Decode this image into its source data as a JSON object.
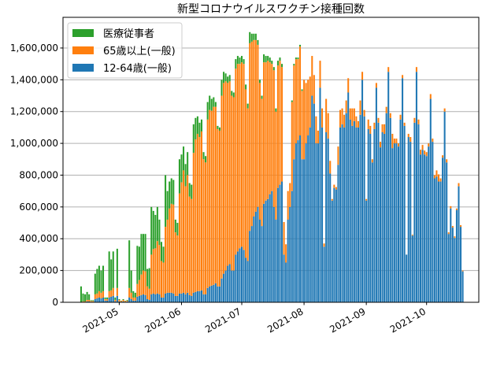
{
  "chart_data": {
    "type": "bar",
    "stacked": true,
    "title": "新型コロナウイルスワクチン接種回数",
    "xlabel": "",
    "ylabel": "",
    "frequency": "daily",
    "date_range": [
      "2021-04-12",
      "2021-10-19"
    ],
    "xlim": [
      "2021-04-03",
      "2021-10-27"
    ],
    "ylim": [
      0,
      1793000
    ],
    "x_ticks": [
      "2021-05",
      "2021-06",
      "2021-07",
      "2021-08",
      "2021-09",
      "2021-10"
    ],
    "x_tick_dates": [
      "2021-05-01",
      "2021-06-01",
      "2021-07-01",
      "2021-08-01",
      "2021-09-01",
      "2021-10-01"
    ],
    "y_ticks": [
      0,
      200000,
      400000,
      600000,
      800000,
      1000000,
      1200000,
      1400000,
      1600000
    ],
    "y_tick_labels": [
      "0",
      "200,000",
      "400,000",
      "600,000",
      "800,000",
      "1,000,000",
      "1,200,000",
      "1,400,000",
      "1,600,000"
    ],
    "grid": "horizontal",
    "legend_position": "top-left",
    "legend_order": [
      "medical",
      "elderly",
      "general"
    ],
    "series": [
      {
        "key": "general",
        "name": "12-64歳(一般)",
        "color": "#1f77b4",
        "values": [
          0,
          0,
          0,
          5000,
          5000,
          3000,
          3000,
          20000,
          25000,
          30000,
          25000,
          30000,
          10000,
          10000,
          30000,
          35000,
          40000,
          5000,
          40000,
          5000,
          3000,
          5000,
          3000,
          5000,
          30000,
          20000,
          10000,
          10000,
          35000,
          40000,
          45000,
          50000,
          45000,
          20000,
          15000,
          50000,
          55000,
          50000,
          55000,
          50000,
          30000,
          30000,
          55000,
          60000,
          60000,
          60000,
          55000,
          40000,
          40000,
          55000,
          55000,
          60000,
          50000,
          60000,
          45000,
          40000,
          60000,
          65000,
          70000,
          70000,
          75000,
          50000,
          50000,
          90000,
          100000,
          105000,
          110000,
          120000,
          100000,
          100000,
          150000,
          180000,
          200000,
          230000,
          240000,
          200000,
          200000,
          300000,
          320000,
          340000,
          350000,
          330000,
          280000,
          260000,
          450000,
          480000,
          540000,
          570000,
          600000,
          520000,
          480000,
          620000,
          640000,
          650000,
          680000,
          700000,
          600000,
          520000,
          720000,
          740000,
          760000,
          300000,
          250000,
          520000,
          600000,
          700000,
          900000,
          1000000,
          1020000,
          1050000,
          900000,
          900000,
          1000000,
          1050000,
          1100000,
          1300000,
          1250000,
          1000000,
          1000000,
          1350000,
          1100000,
          350000,
          1070000,
          1030000,
          810000,
          640000,
          720000,
          710000,
          865000,
          1100000,
          1120000,
          1100000,
          1190000,
          1320000,
          1150000,
          1110000,
          1140000,
          1100000,
          1100000,
          1180000,
          1400000,
          1170000,
          640000,
          1090000,
          1060000,
          880000,
          1090000,
          1350000,
          1130000,
          975000,
          1070000,
          1060000,
          1190000,
          1450000,
          1160000,
          970000,
          1000000,
          1000000,
          980000,
          1150000,
          1410000,
          1110000,
          300000,
          1040000,
          1010000,
          420000,
          1130000,
          1450000,
          1120000,
          930000,
          960000,
          930000,
          920000,
          980000,
          1280000,
          1010000,
          780000,
          790000,
          760000,
          760000,
          910000,
          1200000,
          880000,
          430000,
          590000,
          470000,
          405000,
          580000,
          730000,
          475000,
          195000
        ]
      },
      {
        "key": "elderly",
        "name": "65歳以上(一般)",
        "color": "#ff7f0e",
        "values": [
          0,
          5000,
          5000,
          10000,
          10000,
          5000,
          5000,
          30000,
          30000,
          40000,
          35000,
          40000,
          10000,
          10000,
          40000,
          40000,
          50000,
          10000,
          50000,
          10000,
          5000,
          10000,
          5000,
          5000,
          60000,
          40000,
          20000,
          20000,
          80000,
          100000,
          130000,
          150000,
          150000,
          80000,
          70000,
          250000,
          280000,
          290000,
          330000,
          310000,
          230000,
          220000,
          420000,
          460000,
          530000,
          560000,
          560000,
          400000,
          380000,
          630000,
          700000,
          770000,
          680000,
          740000,
          620000,
          610000,
          880000,
          960000,
          990000,
          970000,
          1000000,
          850000,
          830000,
          1060000,
          1110000,
          1100000,
          1120000,
          1110000,
          990000,
          980000,
          1150000,
          1200000,
          1190000,
          1150000,
          1150000,
          1100000,
          1090000,
          1170000,
          1180000,
          1160000,
          1160000,
          1170000,
          1060000,
          960000,
          1180000,
          1160000,
          1110000,
          1080000,
          1020000,
          860000,
          800000,
          890000,
          870000,
          870000,
          830000,
          800000,
          860000,
          680000,
          770000,
          780000,
          720000,
          205000,
          115000,
          180000,
          150000,
          560000,
          590000,
          530000,
          510000,
          560000,
          430000,
          500000,
          380000,
          350000,
          320000,
          250000,
          180000,
          170000,
          80000,
          170000,
          120000,
          20000,
          210000,
          160000,
          80000,
          10000,
          20000,
          15000,
          115000,
          110000,
          100000,
          80000,
          80000,
          90000,
          70000,
          110000,
          80000,
          70000,
          40000,
          90000,
          50000,
          40000,
          10000,
          60000,
          50000,
          20000,
          40000,
          30000,
          30000,
          35000,
          50000,
          60000,
          40000,
          30000,
          30000,
          90000,
          30000,
          30000,
          20000,
          30000,
          20000,
          20000,
          0,
          20000,
          30000,
          5000,
          30000,
          30000,
          30000,
          30000,
          30000,
          25000,
          25000,
          20000,
          30000,
          20000,
          20000,
          40000,
          45000,
          20000,
          15000,
          20000,
          20000,
          10000,
          15000,
          10000,
          10000,
          10000,
          20000,
          10000,
          5000
        ]
      },
      {
        "key": "medical",
        "name": "医療従事者",
        "color": "#2ca02c",
        "values": [
          100000,
          50000,
          45000,
          50000,
          35000,
          5000,
          5000,
          130000,
          155000,
          160000,
          140000,
          160000,
          10000,
          10000,
          250000,
          195000,
          230000,
          15000,
          247000,
          5000,
          2000,
          5000,
          2000,
          5000,
          300000,
          140000,
          40000,
          30000,
          240000,
          210000,
          255000,
          230000,
          235000,
          110000,
          130000,
          300000,
          240000,
          210000,
          215000,
          160000,
          120000,
          100000,
          325000,
          180000,
          170000,
          160000,
          155000,
          80000,
          80000,
          215000,
          175000,
          150000,
          140000,
          145000,
          85000,
          90000,
          180000,
          135000,
          110000,
          90000,
          75000,
          45000,
          40000,
          110000,
          90000,
          75000,
          60000,
          30000,
          20000,
          20000,
          100000,
          70000,
          50000,
          40000,
          40000,
          30000,
          30000,
          60000,
          50000,
          40000,
          40000,
          30000,
          30000,
          30000,
          70000,
          50000,
          40000,
          40000,
          30000,
          20000,
          20000,
          50000,
          40000,
          30000,
          30000,
          20000,
          20000,
          20000,
          30000,
          20000,
          20000,
          0,
          0,
          0,
          0,
          10000,
          10000,
          10000,
          10000,
          10000,
          10000,
          0,
          0,
          0,
          0,
          0,
          0,
          0,
          0,
          0,
          0,
          0,
          0,
          0,
          0,
          0,
          0,
          0,
          0,
          0,
          0,
          0,
          0,
          0,
          0,
          0,
          0,
          0,
          0,
          0,
          0,
          0,
          0,
          0,
          0,
          0,
          0,
          0,
          0,
          0,
          0,
          0,
          0,
          0,
          0,
          0,
          0,
          0,
          0,
          0,
          0,
          0,
          0,
          0,
          0,
          0,
          0,
          0,
          0,
          0,
          0,
          0,
          0,
          0,
          0,
          0,
          0,
          0,
          0,
          0,
          0,
          0,
          0,
          0,
          0,
          0,
          0,
          0,
          0,
          0,
          0
        ]
      }
    ]
  }
}
